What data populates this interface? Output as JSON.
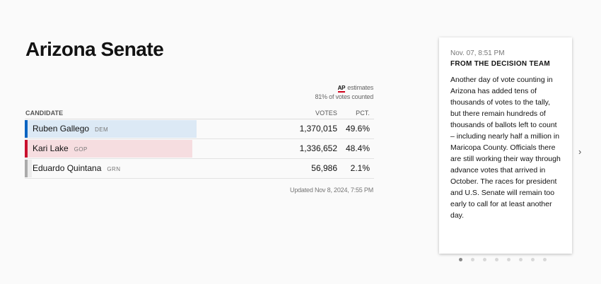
{
  "title": "Arizona Senate",
  "meta": {
    "ap_label": "AP",
    "estimates_label": "estimates",
    "votes_counted": "81% of votes counted"
  },
  "table": {
    "headers": {
      "candidate": "CANDIDATE",
      "votes": "VOTES",
      "pct": "PCT."
    },
    "rows": [
      {
        "name": "Ruben Gallego",
        "party": "DEM",
        "votes": "1,370,015",
        "pct": "49.6%",
        "share": 49.6,
        "color": "#0b64c1",
        "fill": "#dce9f5"
      },
      {
        "name": "Kari Lake",
        "party": "GOP",
        "votes": "1,336,652",
        "pct": "48.4%",
        "share": 48.4,
        "color": "#c8102e",
        "fill": "#f6dde0"
      },
      {
        "name": "Eduardo Quintana",
        "party": "GRN",
        "votes": "56,986",
        "pct": "2.1%",
        "share": 2.1,
        "color": "#aaaaaa",
        "fill": "#ececec"
      }
    ]
  },
  "updated": "Updated Nov 8, 2024, 7:55 PM",
  "card": {
    "time": "Nov. 07, 8:51 PM",
    "heading": "FROM THE DECISION TEAM",
    "body": "Another day of vote counting in Arizona has added tens of thousands of votes to the tally, but there remain hundreds of thousands of ballots left to count – including nearly half a million in Maricopa County. Officials there are still working their way through advance votes that arrived in October. The races for president and U.S. Senate will remain too early to call for at least another day."
  },
  "carousel": {
    "next_icon": "chevron-right-icon",
    "active_index": 0,
    "count": 8
  }
}
